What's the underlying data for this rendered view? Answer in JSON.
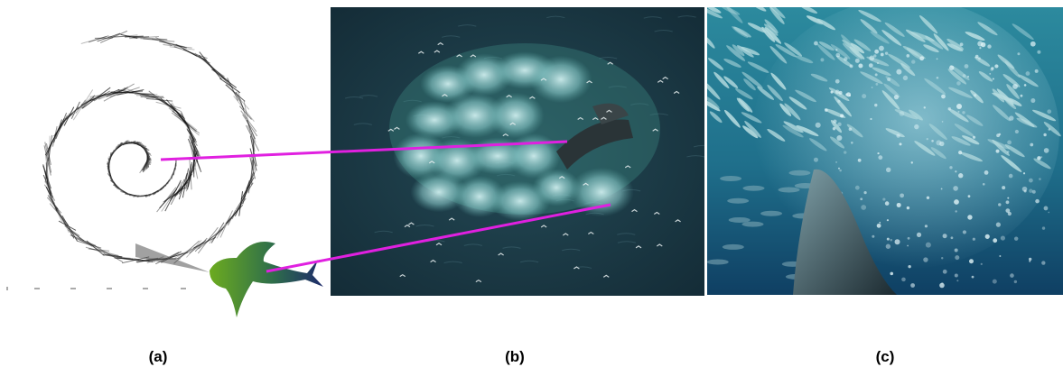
{
  "captions": {
    "a": "(a)",
    "b": "(b)",
    "c": "(c)"
  },
  "colors": {
    "connector": "#e020e0",
    "ocean_dark": "#1b3b48",
    "ocean_underwater": "#2f7d93",
    "whale_tail": "#1d2a6b",
    "whale_body": "#5c9a2a"
  },
  "icons": {
    "whale": "whale-silhouette-icon"
  }
}
